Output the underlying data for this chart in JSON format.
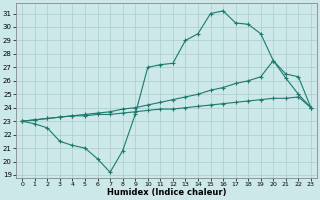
{
  "xlabel": "Humidex (Indice chaleur)",
  "bg_color": "#cce8e8",
  "grid_color": "#aacccc",
  "line_color": "#1a7a6e",
  "xlim": [
    -0.5,
    23.5
  ],
  "ylim": [
    18.8,
    31.8
  ],
  "xticks": [
    0,
    1,
    2,
    3,
    4,
    5,
    6,
    7,
    8,
    9,
    10,
    11,
    12,
    13,
    14,
    15,
    16,
    17,
    18,
    19,
    20,
    21,
    22,
    23
  ],
  "yticks": [
    19,
    20,
    21,
    22,
    23,
    24,
    25,
    26,
    27,
    28,
    29,
    30,
    31
  ],
  "line1_x": [
    0,
    1,
    2,
    3,
    4,
    5,
    6,
    7,
    8,
    9,
    10,
    11,
    12,
    13,
    14,
    15,
    16,
    17,
    18,
    19,
    20,
    21,
    22,
    23
  ],
  "line1_y": [
    23.0,
    22.8,
    22.5,
    21.5,
    21.2,
    21.0,
    20.2,
    19.2,
    20.8,
    23.5,
    27.0,
    27.2,
    27.3,
    29.0,
    29.5,
    31.0,
    31.2,
    30.3,
    30.2,
    29.5,
    27.5,
    26.2,
    25.0,
    24.0
  ],
  "line2_x": [
    0,
    1,
    2,
    3,
    4,
    5,
    6,
    7,
    8,
    9,
    10,
    11,
    12,
    13,
    14,
    15,
    16,
    17,
    18,
    19,
    20,
    21,
    22,
    23
  ],
  "line2_y": [
    23.0,
    23.1,
    23.2,
    23.3,
    23.4,
    23.5,
    23.6,
    23.7,
    23.9,
    24.0,
    24.2,
    24.4,
    24.6,
    24.8,
    25.0,
    25.3,
    25.5,
    25.8,
    26.0,
    26.3,
    27.5,
    26.5,
    26.3,
    24.0
  ],
  "line3_x": [
    0,
    1,
    2,
    3,
    4,
    5,
    6,
    7,
    8,
    9,
    10,
    11,
    12,
    13,
    14,
    15,
    16,
    17,
    18,
    19,
    20,
    21,
    22,
    23
  ],
  "line3_y": [
    23.0,
    23.1,
    23.2,
    23.3,
    23.4,
    23.4,
    23.5,
    23.5,
    23.6,
    23.7,
    23.8,
    23.9,
    23.9,
    24.0,
    24.1,
    24.2,
    24.3,
    24.4,
    24.5,
    24.6,
    24.7,
    24.7,
    24.8,
    24.0
  ]
}
